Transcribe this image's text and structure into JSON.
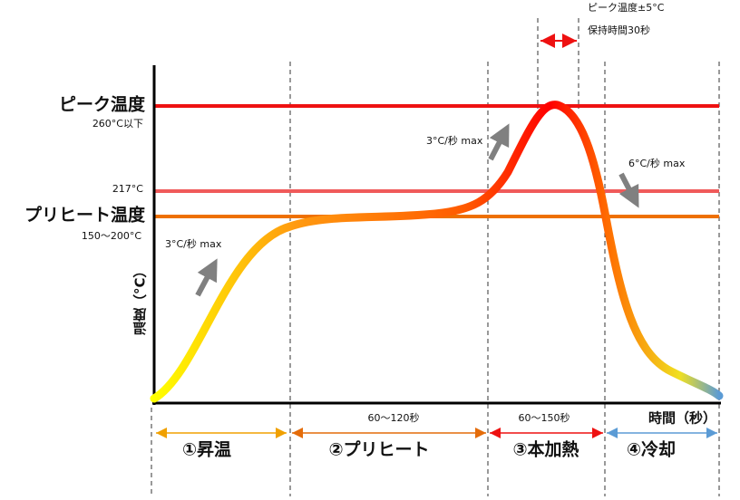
{
  "labels": {
    "peak": "ピーク温度",
    "peak_sub": "260°C以下",
    "t217": "217°C",
    "preheat": "プリヒート温度",
    "preheat_sub": "150～200°C",
    "y_axis": "温度（°C）",
    "x_axis": "時間（秒）",
    "hold_temp": "ピーク温度±5°C",
    "hold_time": "保持時間30秒"
  },
  "rates": [
    "3°C/秒 max",
    "3°C/秒 max",
    "6°C/秒 max"
  ],
  "phases": [
    {
      "label": "①昇温"
    },
    {
      "label": "②プリヒート",
      "duration": "60～120秒"
    },
    {
      "label": "③本加熱",
      "duration": "60～150秒"
    },
    {
      "label": "④冷却"
    }
  ]
}
